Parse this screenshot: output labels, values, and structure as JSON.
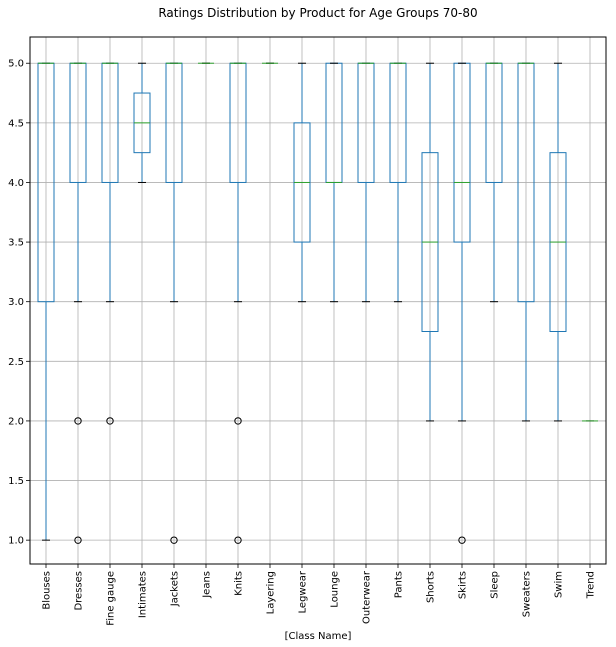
{
  "chart_data": {
    "type": "boxplot",
    "title": "Ratings Distribution by Product for Age Groups 70-80",
    "xlabel": "[Class Name]",
    "ylabel": "",
    "ylim": [
      0.8,
      5.22
    ],
    "y_ticks": [
      "1.0",
      "1.5",
      "2.0",
      "2.5",
      "3.0",
      "3.5",
      "4.0",
      "4.5",
      "5.0"
    ],
    "grid": true,
    "colors": {
      "box": "#1f77b4",
      "median": "#2ca02c",
      "whisker": "#1f77b4",
      "cap": "#000000",
      "outlier": "#000000"
    },
    "categories": [
      "Blouses",
      "Dresses",
      "Fine gauge",
      "Intimates",
      "Jackets",
      "Jeans",
      "Knits",
      "Layering",
      "Legwear",
      "Lounge",
      "Outerwear",
      "Pants",
      "Shorts",
      "Skirts",
      "Sleep",
      "Sweaters",
      "Swim",
      "Trend"
    ],
    "boxes": [
      {
        "q1": 3.0,
        "median": 5.0,
        "q3": 5.0,
        "whislo": 1.0,
        "whishi": 5.0,
        "fliers": []
      },
      {
        "q1": 4.0,
        "median": 5.0,
        "q3": 5.0,
        "whislo": 3.0,
        "whishi": 5.0,
        "fliers": [
          2.0,
          1.0
        ]
      },
      {
        "q1": 4.0,
        "median": 5.0,
        "q3": 5.0,
        "whislo": 3.0,
        "whishi": 5.0,
        "fliers": [
          2.0
        ]
      },
      {
        "q1": 4.25,
        "median": 4.5,
        "q3": 4.75,
        "whislo": 4.0,
        "whishi": 5.0,
        "fliers": []
      },
      {
        "q1": 4.0,
        "median": 5.0,
        "q3": 5.0,
        "whislo": 3.0,
        "whishi": 5.0,
        "fliers": [
          1.0
        ]
      },
      {
        "q1": 5.0,
        "median": 5.0,
        "q3": 5.0,
        "whislo": 5.0,
        "whishi": 5.0,
        "fliers": []
      },
      {
        "q1": 4.0,
        "median": 5.0,
        "q3": 5.0,
        "whislo": 3.0,
        "whishi": 5.0,
        "fliers": [
          2.0,
          1.0
        ]
      },
      {
        "q1": 5.0,
        "median": 5.0,
        "q3": 5.0,
        "whislo": 5.0,
        "whishi": 5.0,
        "fliers": []
      },
      {
        "q1": 3.5,
        "median": 4.0,
        "q3": 4.5,
        "whislo": 3.0,
        "whishi": 5.0,
        "fliers": []
      },
      {
        "q1": 4.0,
        "median": 4.0,
        "q3": 5.0,
        "whislo": 3.0,
        "whishi": 5.0,
        "fliers": []
      },
      {
        "q1": 4.0,
        "median": 5.0,
        "q3": 5.0,
        "whislo": 3.0,
        "whishi": 5.0,
        "fliers": []
      },
      {
        "q1": 4.0,
        "median": 5.0,
        "q3": 5.0,
        "whislo": 3.0,
        "whishi": 5.0,
        "fliers": []
      },
      {
        "q1": 2.75,
        "median": 3.5,
        "q3": 4.25,
        "whislo": 2.0,
        "whishi": 5.0,
        "fliers": []
      },
      {
        "q1": 3.5,
        "median": 4.0,
        "q3": 5.0,
        "whislo": 2.0,
        "whishi": 5.0,
        "fliers": [
          1.0
        ]
      },
      {
        "q1": 4.0,
        "median": 5.0,
        "q3": 5.0,
        "whislo": 3.0,
        "whishi": 5.0,
        "fliers": []
      },
      {
        "q1": 3.0,
        "median": 5.0,
        "q3": 5.0,
        "whislo": 2.0,
        "whishi": 5.0,
        "fliers": []
      },
      {
        "q1": 2.75,
        "median": 3.5,
        "q3": 4.25,
        "whislo": 2.0,
        "whishi": 5.0,
        "fliers": []
      },
      {
        "q1": 2.0,
        "median": 2.0,
        "q3": 2.0,
        "whislo": 2.0,
        "whishi": 2.0,
        "fliers": []
      }
    ]
  }
}
